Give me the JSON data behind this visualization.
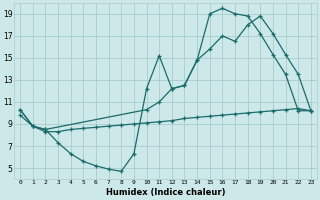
{
  "xlabel": "Humidex (Indice chaleur)",
  "bg_color": "#cce8e8",
  "grid_color": "#aacccc",
  "line_color": "#1a6b6b",
  "xlim": [
    -0.5,
    23.5
  ],
  "ylim": [
    4,
    20
  ],
  "xticks": [
    0,
    1,
    2,
    3,
    4,
    5,
    6,
    7,
    8,
    9,
    10,
    11,
    12,
    13,
    14,
    15,
    16,
    17,
    18,
    19,
    20,
    21,
    22,
    23
  ],
  "yticks": [
    5,
    7,
    9,
    11,
    13,
    15,
    17,
    19
  ],
  "line1_x": [
    0,
    1,
    2,
    3,
    4,
    5,
    6,
    7,
    8,
    9,
    10,
    11,
    12,
    13,
    14,
    15,
    16,
    17,
    18,
    19,
    20,
    21,
    22,
    23
  ],
  "line1_y": [
    10.3,
    8.8,
    8.5,
    7.3,
    6.3,
    5.6,
    5.2,
    4.9,
    4.7,
    6.3,
    12.2,
    15.2,
    12.2,
    12.5,
    14.8,
    19.0,
    19.5,
    19.0,
    18.8,
    17.2,
    15.3,
    13.5,
    10.2,
    10.2
  ],
  "line2_x": [
    0,
    1,
    2,
    10,
    11,
    12,
    13,
    14,
    15,
    16,
    17,
    18,
    19,
    20,
    21,
    22,
    23
  ],
  "line2_y": [
    10.3,
    8.8,
    8.5,
    10.3,
    11.0,
    12.2,
    12.5,
    14.8,
    15.8,
    17.0,
    16.5,
    18.0,
    18.8,
    17.2,
    15.3,
    13.5,
    10.2
  ],
  "line3_x": [
    0,
    1,
    2,
    3,
    4,
    5,
    6,
    7,
    8,
    9,
    10,
    11,
    12,
    13,
    14,
    15,
    16,
    17,
    18,
    19,
    20,
    21,
    22,
    23
  ],
  "line3_y": [
    9.8,
    8.8,
    8.3,
    8.3,
    8.5,
    8.6,
    8.7,
    8.8,
    8.9,
    9.0,
    9.1,
    9.2,
    9.3,
    9.5,
    9.6,
    9.7,
    9.8,
    9.9,
    10.0,
    10.1,
    10.2,
    10.3,
    10.4,
    10.2
  ]
}
